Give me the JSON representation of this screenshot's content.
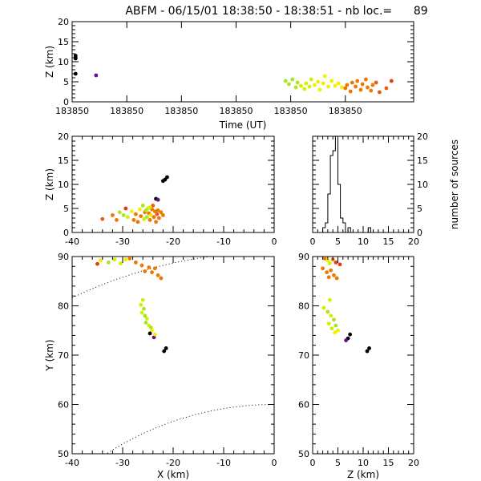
{
  "title": "ABFM - 06/15/01 18:38:50 - 18:38:51 - nb loc.=      89",
  "colors": {
    "black": "#000000",
    "purple": "#6a0d8a",
    "orange": "#f07800",
    "orange_red": "#ec5a10",
    "red_orange": "#e43b10",
    "yellow": "#f0f000",
    "yellow_green": "#d4f000",
    "light_green": "#a8e620"
  },
  "chart_data": [
    {
      "id": "time-height",
      "type": "scatter",
      "xlabel": "Time (UT)",
      "ylabel": "Z (km)",
      "xlim": [
        0,
        1
      ],
      "ylim": [
        0,
        20
      ],
      "xticks": [
        {
          "v": 0.0,
          "label": "183850"
        },
        {
          "v": 0.16,
          "label": "183850"
        },
        {
          "v": 0.32,
          "label": "183850"
        },
        {
          "v": 0.48,
          "label": "183850"
        },
        {
          "v": 0.64,
          "label": "183850"
        },
        {
          "v": 0.8,
          "label": "183850"
        }
      ],
      "yticks": [
        0,
        5,
        10,
        15,
        20
      ],
      "points": [
        {
          "x": 0.01,
          "y": 11.5,
          "c": "black"
        },
        {
          "x": 0.01,
          "y": 11.0,
          "c": "black"
        },
        {
          "x": 0.01,
          "y": 10.8,
          "c": "black"
        },
        {
          "x": 0.01,
          "y": 7.0,
          "c": "black"
        },
        {
          "x": 0.07,
          "y": 6.6,
          "c": "purple"
        },
        {
          "x": 0.625,
          "y": 5.2,
          "c": "light_green"
        },
        {
          "x": 0.635,
          "y": 4.4,
          "c": "light_green"
        },
        {
          "x": 0.645,
          "y": 5.6,
          "c": "light_green"
        },
        {
          "x": 0.655,
          "y": 3.6,
          "c": "light_green"
        },
        {
          "x": 0.66,
          "y": 4.8,
          "c": "light_green"
        },
        {
          "x": 0.67,
          "y": 4.0,
          "c": "yellow_green"
        },
        {
          "x": 0.68,
          "y": 3.2,
          "c": "yellow_green"
        },
        {
          "x": 0.685,
          "y": 4.6,
          "c": "yellow_green"
        },
        {
          "x": 0.695,
          "y": 3.8,
          "c": "yellow_green"
        },
        {
          "x": 0.7,
          "y": 5.6,
          "c": "yellow_green"
        },
        {
          "x": 0.71,
          "y": 4.2,
          "c": "yellow"
        },
        {
          "x": 0.72,
          "y": 5.0,
          "c": "yellow"
        },
        {
          "x": 0.725,
          "y": 3.0,
          "c": "yellow"
        },
        {
          "x": 0.735,
          "y": 4.6,
          "c": "yellow"
        },
        {
          "x": 0.74,
          "y": 6.4,
          "c": "yellow"
        },
        {
          "x": 0.75,
          "y": 3.8,
          "c": "yellow"
        },
        {
          "x": 0.76,
          "y": 5.2,
          "c": "yellow"
        },
        {
          "x": 0.77,
          "y": 4.0,
          "c": "yellow"
        },
        {
          "x": 0.78,
          "y": 4.6,
          "c": "yellow"
        },
        {
          "x": 0.79,
          "y": 3.6,
          "c": "yellow"
        },
        {
          "x": 0.8,
          "y": 3.4,
          "c": "orange"
        },
        {
          "x": 0.805,
          "y": 4.2,
          "c": "orange"
        },
        {
          "x": 0.815,
          "y": 2.6,
          "c": "orange"
        },
        {
          "x": 0.82,
          "y": 4.8,
          "c": "orange"
        },
        {
          "x": 0.83,
          "y": 3.8,
          "c": "orange"
        },
        {
          "x": 0.835,
          "y": 5.2,
          "c": "orange"
        },
        {
          "x": 0.845,
          "y": 3.0,
          "c": "orange"
        },
        {
          "x": 0.85,
          "y": 4.4,
          "c": "orange"
        },
        {
          "x": 0.86,
          "y": 5.6,
          "c": "orange"
        },
        {
          "x": 0.865,
          "y": 3.6,
          "c": "orange"
        },
        {
          "x": 0.875,
          "y": 2.8,
          "c": "orange"
        },
        {
          "x": 0.88,
          "y": 4.2,
          "c": "orange"
        },
        {
          "x": 0.89,
          "y": 4.8,
          "c": "orange_red"
        },
        {
          "x": 0.9,
          "y": 2.4,
          "c": "orange_red"
        },
        {
          "x": 0.92,
          "y": 3.4,
          "c": "orange_red"
        },
        {
          "x": 0.935,
          "y": 5.2,
          "c": "red_orange"
        }
      ]
    },
    {
      "id": "x-height",
      "type": "scatter",
      "xlabel": "",
      "ylabel": "Z (km)",
      "xlim": [
        -40,
        0
      ],
      "ylim": [
        0,
        20
      ],
      "xticks": [
        -40,
        -30,
        -20,
        -10,
        0
      ],
      "yticks": [
        0,
        5,
        10,
        15,
        20
      ],
      "points": [
        {
          "x": -21.2,
          "y": 11.5,
          "c": "black"
        },
        {
          "x": -21.6,
          "y": 11.0,
          "c": "black"
        },
        {
          "x": -22.0,
          "y": 10.7,
          "c": "black"
        },
        {
          "x": -23.4,
          "y": 7.0,
          "c": "black"
        },
        {
          "x": -23.0,
          "y": 6.8,
          "c": "purple"
        },
        {
          "x": -34.0,
          "y": 2.8,
          "c": "orange_red"
        },
        {
          "x": -32.0,
          "y": 3.6,
          "c": "orange"
        },
        {
          "x": -31.2,
          "y": 2.6,
          "c": "orange"
        },
        {
          "x": -30.6,
          "y": 4.2,
          "c": "light_green"
        },
        {
          "x": -29.8,
          "y": 3.6,
          "c": "light_green"
        },
        {
          "x": -29.4,
          "y": 5.0,
          "c": "red_orange"
        },
        {
          "x": -29.0,
          "y": 3.2,
          "c": "yellow_green"
        },
        {
          "x": -28.2,
          "y": 4.4,
          "c": "yellow"
        },
        {
          "x": -27.8,
          "y": 2.6,
          "c": "orange"
        },
        {
          "x": -27.4,
          "y": 3.8,
          "c": "orange"
        },
        {
          "x": -27.0,
          "y": 2.2,
          "c": "orange"
        },
        {
          "x": -26.6,
          "y": 4.8,
          "c": "yellow"
        },
        {
          "x": -26.4,
          "y": 3.4,
          "c": "orange"
        },
        {
          "x": -26.0,
          "y": 5.6,
          "c": "light_green"
        },
        {
          "x": -25.8,
          "y": 2.8,
          "c": "yellow_green"
        },
        {
          "x": -25.6,
          "y": 4.2,
          "c": "orange"
        },
        {
          "x": -25.2,
          "y": 3.2,
          "c": "light_green"
        },
        {
          "x": -25.0,
          "y": 5.0,
          "c": "yellow_green"
        },
        {
          "x": -24.8,
          "y": 4.0,
          "c": "orange"
        },
        {
          "x": -24.6,
          "y": 2.6,
          "c": "orange"
        },
        {
          "x": -24.4,
          "y": 3.6,
          "c": "yellow"
        },
        {
          "x": -24.2,
          "y": 4.8,
          "c": "orange"
        },
        {
          "x": -24.0,
          "y": 5.6,
          "c": "orange_red"
        },
        {
          "x": -23.8,
          "y": 3.2,
          "c": "orange"
        },
        {
          "x": -23.6,
          "y": 4.4,
          "c": "orange"
        },
        {
          "x": -23.4,
          "y": 2.2,
          "c": "orange"
        },
        {
          "x": -23.2,
          "y": 3.8,
          "c": "orange_red"
        },
        {
          "x": -23.0,
          "y": 4.6,
          "c": "orange"
        },
        {
          "x": -22.8,
          "y": 3.0,
          "c": "orange"
        },
        {
          "x": -22.4,
          "y": 4.2,
          "c": "orange"
        },
        {
          "x": -22.0,
          "y": 3.6,
          "c": "orange"
        },
        {
          "x": -24.6,
          "y": 5.2,
          "c": "yellow_green"
        },
        {
          "x": -25.4,
          "y": 4.6,
          "c": "light_green"
        }
      ]
    },
    {
      "id": "height-histogram",
      "type": "bar",
      "step": true,
      "xlabel": "",
      "ylabel": "number of sources",
      "xlim": [
        0,
        20
      ],
      "ylim": [
        0,
        20
      ],
      "xticks": [
        0,
        5,
        10,
        15,
        20
      ],
      "yticks": [
        0,
        5,
        10,
        15,
        20
      ],
      "bin_width": 0.5,
      "x": [
        0,
        0.5,
        1,
        1.5,
        2,
        2.5,
        3,
        3.5,
        4,
        4.5,
        5,
        5.5,
        6,
        6.5,
        7,
        7.5,
        8,
        8.5,
        9,
        9.5,
        10,
        10.5,
        11,
        11.5,
        12,
        12.5,
        13,
        13.5,
        14,
        14.5,
        15,
        15.5,
        16,
        16.5,
        17,
        17.5,
        18,
        18.5,
        19,
        19.5
      ],
      "values": [
        0,
        0,
        0,
        0,
        1,
        2,
        8,
        16,
        17,
        20,
        10,
        3,
        2,
        0,
        1,
        0,
        0,
        0,
        0,
        0,
        0,
        0,
        1,
        0,
        0,
        0,
        0,
        0,
        0,
        0,
        0,
        0,
        0,
        0,
        0,
        0,
        0,
        0,
        0,
        0
      ]
    },
    {
      "id": "plan-view",
      "type": "scatter",
      "xlabel": "X (km)",
      "ylabel": "Y (km)",
      "xlim": [
        -40,
        0
      ],
      "ylim": [
        50,
        90
      ],
      "xticks": [
        -40,
        -30,
        -20,
        -10,
        0
      ],
      "yticks": [
        50,
        60,
        70,
        80,
        90
      ],
      "range_rings": [
        {
          "radius": 90.9,
          "center_x": 0,
          "center_y": 0
        },
        {
          "radius": 60.0,
          "center_x": 0,
          "center_y": 0
        }
      ],
      "points": [
        {
          "x": -35.0,
          "y": 88.5,
          "c": "red_orange"
        },
        {
          "x": -34.4,
          "y": 89.2,
          "c": "yellow"
        },
        {
          "x": -32.8,
          "y": 88.8,
          "c": "light_green"
        },
        {
          "x": -31.6,
          "y": 89.4,
          "c": "yellow_green"
        },
        {
          "x": -30.4,
          "y": 88.6,
          "c": "yellow_green"
        },
        {
          "x": -29.4,
          "y": 89.4,
          "c": "yellow"
        },
        {
          "x": -28.6,
          "y": 89.6,
          "c": "orange"
        },
        {
          "x": -27.4,
          "y": 88.8,
          "c": "orange"
        },
        {
          "x": -26.2,
          "y": 88.2,
          "c": "orange"
        },
        {
          "x": -25.6,
          "y": 87.0,
          "c": "orange"
        },
        {
          "x": -24.8,
          "y": 87.8,
          "c": "orange"
        },
        {
          "x": -24.2,
          "y": 86.8,
          "c": "orange"
        },
        {
          "x": -23.6,
          "y": 87.6,
          "c": "orange"
        },
        {
          "x": -23.0,
          "y": 86.2,
          "c": "orange"
        },
        {
          "x": -22.4,
          "y": 85.6,
          "c": "orange"
        },
        {
          "x": -26.0,
          "y": 81.2,
          "c": "yellow_green"
        },
        {
          "x": -26.4,
          "y": 80.2,
          "c": "yellow_green"
        },
        {
          "x": -25.8,
          "y": 79.4,
          "c": "light_green"
        },
        {
          "x": -26.2,
          "y": 78.6,
          "c": "yellow_green"
        },
        {
          "x": -25.6,
          "y": 78.0,
          "c": "light_green"
        },
        {
          "x": -25.2,
          "y": 77.4,
          "c": "yellow_green"
        },
        {
          "x": -25.4,
          "y": 76.6,
          "c": "light_green"
        },
        {
          "x": -24.8,
          "y": 76.0,
          "c": "yellow_green"
        },
        {
          "x": -24.4,
          "y": 75.6,
          "c": "light_green"
        },
        {
          "x": -24.2,
          "y": 75.0,
          "c": "yellow"
        },
        {
          "x": -24.6,
          "y": 74.4,
          "c": "black"
        },
        {
          "x": -23.8,
          "y": 73.6,
          "c": "purple"
        },
        {
          "x": -23.6,
          "y": 74.2,
          "c": "yellow"
        },
        {
          "x": -21.4,
          "y": 71.4,
          "c": "black"
        },
        {
          "x": -21.8,
          "y": 70.8,
          "c": "black"
        }
      ]
    },
    {
      "id": "z-y",
      "type": "scatter",
      "xlabel": "Z (km)",
      "ylabel": "",
      "xlim": [
        0,
        20
      ],
      "ylim": [
        50,
        90
      ],
      "xticks": [
        0,
        5,
        10,
        15,
        20
      ],
      "yticks": [
        50,
        60,
        70,
        80,
        90
      ],
      "points": [
        {
          "x": 2.4,
          "y": 89.6,
          "c": "orange"
        },
        {
          "x": 3.0,
          "y": 89.2,
          "c": "yellow"
        },
        {
          "x": 3.4,
          "y": 88.6,
          "c": "yellow_green"
        },
        {
          "x": 4.0,
          "y": 89.4,
          "c": "orange"
        },
        {
          "x": 4.6,
          "y": 88.8,
          "c": "red_orange"
        },
        {
          "x": 5.4,
          "y": 88.4,
          "c": "red_orange"
        },
        {
          "x": 2.0,
          "y": 87.6,
          "c": "orange"
        },
        {
          "x": 2.8,
          "y": 86.8,
          "c": "orange"
        },
        {
          "x": 3.6,
          "y": 87.2,
          "c": "orange"
        },
        {
          "x": 4.2,
          "y": 86.2,
          "c": "orange"
        },
        {
          "x": 4.8,
          "y": 85.6,
          "c": "orange"
        },
        {
          "x": 3.2,
          "y": 85.8,
          "c": "orange"
        },
        {
          "x": 2.2,
          "y": 79.6,
          "c": "yellow_green"
        },
        {
          "x": 3.0,
          "y": 78.8,
          "c": "light_green"
        },
        {
          "x": 3.6,
          "y": 78.0,
          "c": "yellow_green"
        },
        {
          "x": 4.2,
          "y": 77.2,
          "c": "light_green"
        },
        {
          "x": 3.2,
          "y": 76.4,
          "c": "yellow_green"
        },
        {
          "x": 4.6,
          "y": 76.0,
          "c": "light_green"
        },
        {
          "x": 3.8,
          "y": 75.4,
          "c": "yellow_green"
        },
        {
          "x": 5.0,
          "y": 75.0,
          "c": "yellow"
        },
        {
          "x": 4.4,
          "y": 74.6,
          "c": "yellow"
        },
        {
          "x": 3.4,
          "y": 81.2,
          "c": "yellow_green"
        },
        {
          "x": 7.4,
          "y": 74.2,
          "c": "black"
        },
        {
          "x": 7.0,
          "y": 73.4,
          "c": "black"
        },
        {
          "x": 6.6,
          "y": 73.0,
          "c": "purple"
        },
        {
          "x": 11.2,
          "y": 71.4,
          "c": "black"
        },
        {
          "x": 10.8,
          "y": 70.8,
          "c": "black"
        }
      ]
    }
  ]
}
